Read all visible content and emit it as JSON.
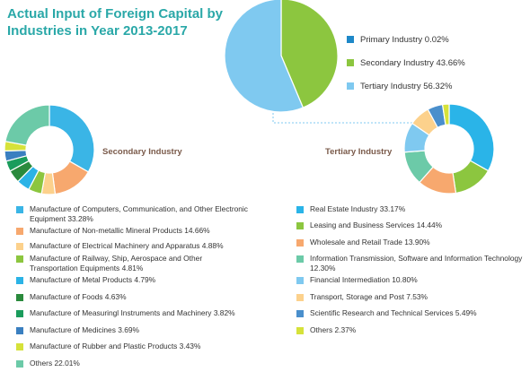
{
  "title": "Actual Input of Foreign Capital by Industries in Year 2013-2017",
  "chart_data": [
    {
      "type": "pie",
      "categories": [
        "Primary Industry",
        "Secondary Industry",
        "Tertiary Industry"
      ],
      "values": [
        0.02,
        43.66,
        56.32
      ],
      "labels": [
        "Primary Industry 0.02%",
        "Secondary Industry 43.66%",
        "Tertiary Industry 56.32%"
      ],
      "colors": [
        "#1e88c8",
        "#8cc63f",
        "#7fc9f0"
      ],
      "legend": "right"
    },
    {
      "type": "pie",
      "title": "Secondary Industry",
      "categories": [
        "Manufacture of Computers, Communication, and Other Electronic Equipment",
        "Manufacture of Non-metallic Mineral Products",
        "Manufacture of Electrical Machinery and Apparatus",
        "Manufacture of Railway, Ship, Aerospace and Other Transportation Equipments",
        "Manufacture of Metal Products",
        "Manufacture of Foods",
        "Manufacture of Measuringl Instruments and Machinery",
        "Manufacture of Medicines",
        "Manufacture of Rubber and Plastic Products",
        "Others"
      ],
      "values": [
        33.28,
        14.66,
        4.88,
        4.81,
        4.79,
        4.63,
        3.82,
        3.69,
        3.43,
        22.01
      ],
      "labels": [
        "Manufacture of Computers, Communication, and Other Electronic Equipment 33.28%",
        "Manufacture of Non-metallic Mineral Products 14.66%",
        "Manufacture of Electrical Machinery and Apparatus 4.88%",
        "Manufacture of Railway, Ship, Aerospace and Other Transportation Equipments 4.81%",
        "Manufacture of Metal Products 4.79%",
        "Manufacture of Foods 4.63%",
        "Manufacture of Measuringl Instruments and Machinery 3.82%",
        "Manufacture of Medicines 3.69%",
        "Manufacture of Rubber and Plastic Products  3.43%",
        "Others 22.01%"
      ],
      "colors": [
        "#3ab5e6",
        "#f7a86e",
        "#fcd18c",
        "#8cc63f",
        "#2bb3e6",
        "#2a8a3c",
        "#1a9c5c",
        "#3a7fc0",
        "#d6e23a",
        "#6ccaa8"
      ],
      "legend": "bottom-left"
    },
    {
      "type": "pie",
      "title": "Tertiary Industry",
      "categories": [
        "Real Estate Industry",
        "Leasing and Business Services",
        "Wholesale and Retail Trade",
        "Information Transmission, Software and Information Technology",
        "Financial Intermediation",
        "Transport, Storage and Post",
        "Scientific Research and Technical Services",
        "Others"
      ],
      "values": [
        33.17,
        14.44,
        13.9,
        12.3,
        10.8,
        7.53,
        5.49,
        2.37
      ],
      "labels": [
        "Real Estate Industry 33.17%",
        "Leasing and Business Services 14.44%",
        "Wholesale and Retail Trade 13.90%",
        "Information Transmission, Software and Information Technology 12.30%",
        "Financial Intermediation 10.80%",
        "Transport, Storage and Post 7.53%",
        "Scientific Research and Technical Services 5.49%",
        "Others 2.37%"
      ],
      "colors": [
        "#2ab4e8",
        "#8cc63f",
        "#f7a86e",
        "#6ccaa8",
        "#7fc9f0",
        "#fcd18c",
        "#4a8fcc",
        "#d6e23a"
      ],
      "legend": "bottom-right"
    }
  ],
  "connector_color": "#7fc9f0"
}
